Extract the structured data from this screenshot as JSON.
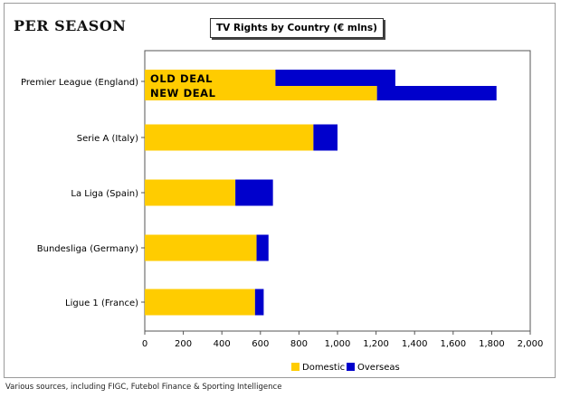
{
  "page": {
    "corner_title": "PER SEASON",
    "source_note": "Various sources, including FIGC, Futebol Finance & Sporting Intelligence"
  },
  "chart_data": {
    "type": "bar",
    "orientation": "horizontal",
    "stacked": true,
    "title": "TV Rights by Country (€ mlns)",
    "categories": [
      "Premier League (England)",
      "Serie A (Italy)",
      "La Liga (Spain)",
      "Bundesliga (Germany)",
      "Ligue 1 (France)"
    ],
    "series": [
      {
        "name": "Domestic",
        "color": "#ffcc00"
      },
      {
        "name": "Overseas",
        "color": "#0000cc"
      }
    ],
    "bars": [
      {
        "category": "Premier League (England)",
        "label": "OLD DEAL",
        "values": [
          678,
          622
        ]
      },
      {
        "category": "Premier League (England)",
        "label": "NEW DEAL",
        "values": [
          1205,
          620
        ]
      },
      {
        "category": "Serie A (Italy)",
        "label": "",
        "values": [
          875,
          125
        ]
      },
      {
        "category": "La Liga (Spain)",
        "label": "",
        "values": [
          470,
          195
        ]
      },
      {
        "category": "Bundesliga (Germany)",
        "label": "",
        "values": [
          580,
          62
        ]
      },
      {
        "category": "Ligue 1 (France)",
        "label": "",
        "values": [
          572,
          45
        ]
      }
    ],
    "xlim": [
      0,
      2000
    ],
    "xticks": [
      "0",
      "200",
      "400",
      "600",
      "800",
      "1,000",
      "1,200",
      "1,400",
      "1,600",
      "1,800",
      "2,000"
    ],
    "xlabel": "",
    "ylabel": "",
    "grid": false,
    "legend_position": "bottom"
  }
}
